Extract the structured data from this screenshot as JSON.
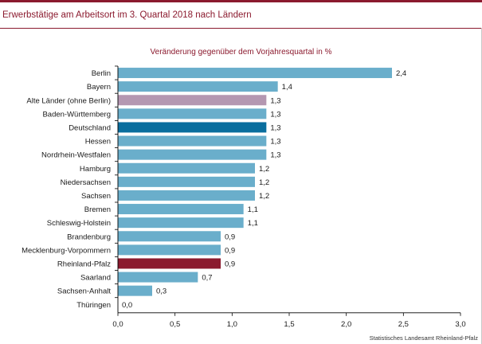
{
  "header": {
    "title": "Erwerbstätige am Arbeitsort im 3. Quartal 2018 nach Ländern"
  },
  "footer": {
    "source": "Statistisches Landesamt Rheinland-Pfalz"
  },
  "colors": {
    "default": "#6aaecb",
    "alte_laender": "#b497b1",
    "deutschland": "#0a6e9e",
    "rheinland_pfalz": "#8b1a2e",
    "axis": "#000000"
  },
  "chart_data": {
    "type": "bar",
    "orientation": "horizontal",
    "title": "Veränderung gegenüber dem Vorjahresquartal in %",
    "categories": [
      "Berlin",
      "Bayern",
      "Alte Länder (ohne Berlin)",
      "Baden-Württemberg",
      "Deutschland",
      "Hessen",
      "Nordrhein-Westfalen",
      "Hamburg",
      "Niedersachsen",
      "Sachsen",
      "Bremen",
      "Schleswig-Holstein",
      "Brandenburg",
      "Mecklenburg-Vorpommern",
      "Rheinland-Pfalz",
      "Saarland",
      "Sachsen-Anhalt",
      "Thüringen"
    ],
    "values": [
      2.4,
      1.4,
      1.3,
      1.3,
      1.3,
      1.3,
      1.3,
      1.2,
      1.2,
      1.2,
      1.1,
      1.1,
      0.9,
      0.9,
      0.9,
      0.7,
      0.3,
      0.0
    ],
    "value_labels": [
      "2,4",
      "1,4",
      "1,3",
      "1,3",
      "1,3",
      "1,3",
      "1,3",
      "1,2",
      "1,2",
      "1,2",
      "1,1",
      "1,1",
      "0,9",
      "0,9",
      "0,9",
      "0,7",
      "0,3",
      "0,0"
    ],
    "highlight": {
      "Alte Länder (ohne Berlin)": "alte_laender",
      "Deutschland": "deutschland",
      "Rheinland-Pfalz": "rheinland_pfalz"
    },
    "xlim": [
      0,
      3.0
    ],
    "xticks": [
      0,
      0.5,
      1.0,
      1.5,
      2.0,
      2.5,
      3.0
    ],
    "xtick_labels": [
      "0,0",
      "0,5",
      "1,0",
      "1,5",
      "2,0",
      "2,5",
      "3,0"
    ],
    "grid": false
  }
}
